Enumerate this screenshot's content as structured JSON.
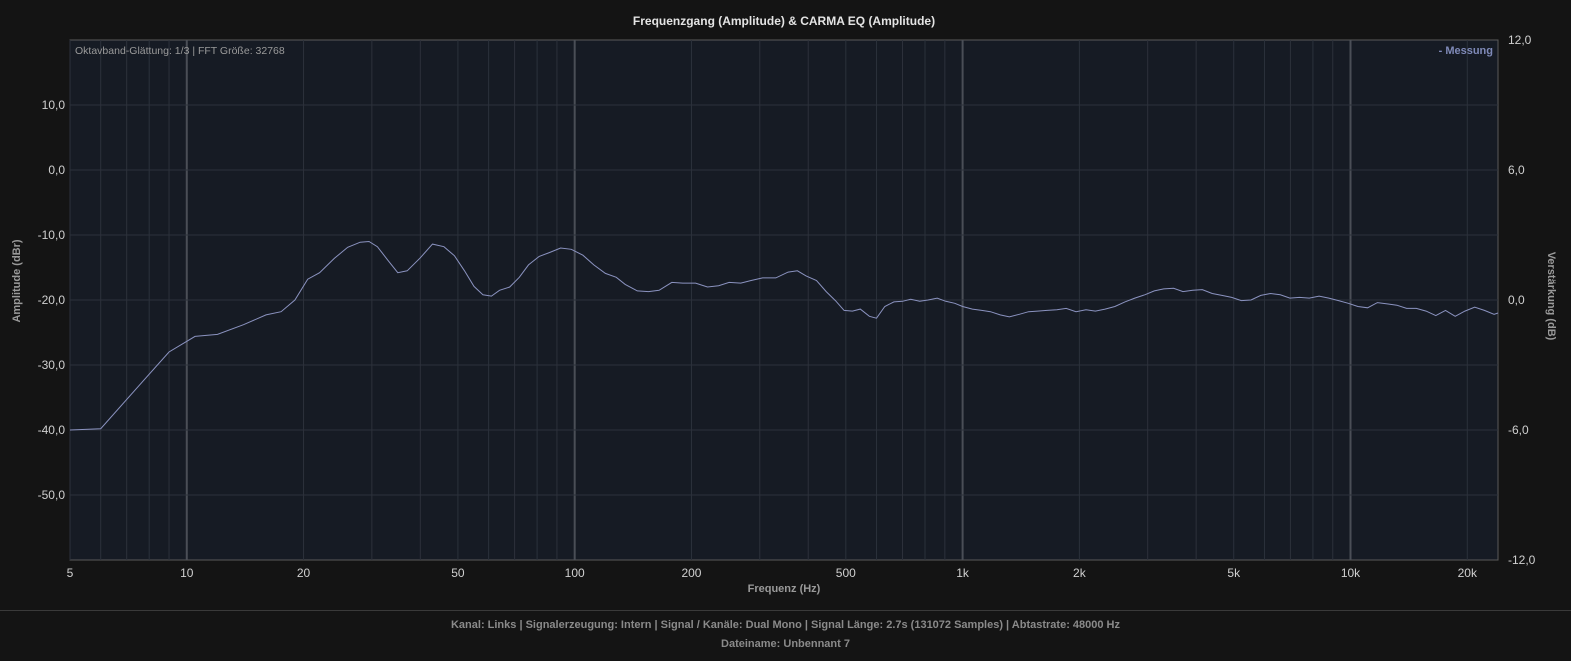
{
  "chart_data": {
    "type": "line",
    "title": "Frequenzgang (Amplitude) & CARMA EQ (Amplitude)",
    "subtitle": "Oktavband-Glättung: 1/3 | FFT Größe: 32768",
    "xlabel": "Frequenz (Hz)",
    "ylabel": "Amplitude (dBr)",
    "y2label": "Verstärkung (dB)",
    "x_scale": "log",
    "xlim": [
      5,
      24000
    ],
    "ylim": [
      -60,
      20
    ],
    "y2lim": [
      -12,
      12
    ],
    "x_ticks": [
      {
        "value": 5,
        "label": "5"
      },
      {
        "value": 10,
        "label": "10"
      },
      {
        "value": 20,
        "label": "20"
      },
      {
        "value": 50,
        "label": "50"
      },
      {
        "value": 100,
        "label": "100"
      },
      {
        "value": 200,
        "label": "200"
      },
      {
        "value": 500,
        "label": "500"
      },
      {
        "value": 1000,
        "label": "1k"
      },
      {
        "value": 2000,
        "label": "2k"
      },
      {
        "value": 5000,
        "label": "5k"
      },
      {
        "value": 10000,
        "label": "10k"
      },
      {
        "value": 20000,
        "label": "20k"
      }
    ],
    "y_ticks": [
      {
        "value": 10,
        "label": "10,0"
      },
      {
        "value": 0,
        "label": "0,0"
      },
      {
        "value": -10,
        "label": "-10,0"
      },
      {
        "value": -20,
        "label": "-20,0"
      },
      {
        "value": -30,
        "label": "-30,0"
      },
      {
        "value": -40,
        "label": "-40,0"
      },
      {
        "value": -50,
        "label": "-50,0"
      }
    ],
    "y2_ticks": [
      {
        "value": 12,
        "label": "12,0"
      },
      {
        "value": 6,
        "label": "6,0"
      },
      {
        "value": 0,
        "label": "0,0"
      },
      {
        "value": -6,
        "label": "-6,0"
      },
      {
        "value": -12,
        "label": "-12,0"
      }
    ],
    "grid": true,
    "legend_position": "top-right",
    "series": [
      {
        "name": "Messung",
        "legend_label": "- Messung",
        "color": "#8b93c0",
        "points": [
          [
            5,
            -40.0
          ],
          [
            6,
            -39.8
          ],
          [
            7.5,
            -33.3
          ],
          [
            9,
            -28.0
          ],
          [
            10.5,
            -25.6
          ],
          [
            12,
            -25.3
          ],
          [
            14,
            -23.8
          ],
          [
            16,
            -22.3
          ],
          [
            17.5,
            -21.8
          ],
          [
            19,
            -20.0
          ],
          [
            20.5,
            -16.8
          ],
          [
            22,
            -15.8
          ],
          [
            24,
            -13.6
          ],
          [
            26,
            -11.9
          ],
          [
            28,
            -11.1
          ],
          [
            29.5,
            -11.0
          ],
          [
            31,
            -11.8
          ],
          [
            33,
            -13.9
          ],
          [
            35,
            -15.8
          ],
          [
            37,
            -15.5
          ],
          [
            40,
            -13.5
          ],
          [
            43,
            -11.4
          ],
          [
            46,
            -11.8
          ],
          [
            49,
            -13.2
          ],
          [
            52,
            -15.5
          ],
          [
            55,
            -17.9
          ],
          [
            58,
            -19.2
          ],
          [
            61,
            -19.4
          ],
          [
            64,
            -18.5
          ],
          [
            68,
            -18.0
          ],
          [
            72,
            -16.5
          ],
          [
            76,
            -14.6
          ],
          [
            81,
            -13.3
          ],
          [
            86,
            -12.7
          ],
          [
            92,
            -12.0
          ],
          [
            98,
            -12.2
          ],
          [
            105,
            -13.1
          ],
          [
            112,
            -14.6
          ],
          [
            120,
            -15.9
          ],
          [
            128,
            -16.5
          ],
          [
            135,
            -17.6
          ],
          [
            145,
            -18.6
          ],
          [
            155,
            -18.7
          ],
          [
            165,
            -18.5
          ],
          [
            178,
            -17.3
          ],
          [
            190,
            -17.4
          ],
          [
            205,
            -17.4
          ],
          [
            220,
            -18.0
          ],
          [
            235,
            -17.8
          ],
          [
            250,
            -17.3
          ],
          [
            268,
            -17.4
          ],
          [
            285,
            -17.0
          ],
          [
            305,
            -16.6
          ],
          [
            330,
            -16.6
          ],
          [
            355,
            -15.7
          ],
          [
            375,
            -15.5
          ],
          [
            395,
            -16.3
          ],
          [
            420,
            -17.0
          ],
          [
            445,
            -18.7
          ],
          [
            470,
            -20.1
          ],
          [
            495,
            -21.6
          ],
          [
            520,
            -21.7
          ],
          [
            545,
            -21.4
          ],
          [
            575,
            -22.5
          ],
          [
            600,
            -22.8
          ],
          [
            630,
            -21.0
          ],
          [
            665,
            -20.3
          ],
          [
            700,
            -20.2
          ],
          [
            735,
            -19.9
          ],
          [
            775,
            -20.2
          ],
          [
            815,
            -20.0
          ],
          [
            860,
            -19.7
          ],
          [
            905,
            -20.2
          ],
          [
            955,
            -20.5
          ],
          [
            1000,
            -21.0
          ],
          [
            1060,
            -21.4
          ],
          [
            1120,
            -21.6
          ],
          [
            1180,
            -21.8
          ],
          [
            1250,
            -22.3
          ],
          [
            1320,
            -22.6
          ],
          [
            1400,
            -22.2
          ],
          [
            1480,
            -21.8
          ],
          [
            1560,
            -21.7
          ],
          [
            1650,
            -21.6
          ],
          [
            1750,
            -21.5
          ],
          [
            1850,
            -21.3
          ],
          [
            1960,
            -21.8
          ],
          [
            2080,
            -21.5
          ],
          [
            2200,
            -21.7
          ],
          [
            2330,
            -21.4
          ],
          [
            2470,
            -21.0
          ],
          [
            2620,
            -20.3
          ],
          [
            2780,
            -19.7
          ],
          [
            2950,
            -19.2
          ],
          [
            3120,
            -18.6
          ],
          [
            3300,
            -18.3
          ],
          [
            3500,
            -18.2
          ],
          [
            3700,
            -18.7
          ],
          [
            3920,
            -18.5
          ],
          [
            4150,
            -18.4
          ],
          [
            4400,
            -19.0
          ],
          [
            4660,
            -19.3
          ],
          [
            4940,
            -19.6
          ],
          [
            5230,
            -20.1
          ],
          [
            5540,
            -20.0
          ],
          [
            5870,
            -19.3
          ],
          [
            6220,
            -19.0
          ],
          [
            6590,
            -19.2
          ],
          [
            6980,
            -19.7
          ],
          [
            7390,
            -19.6
          ],
          [
            7830,
            -19.7
          ],
          [
            8300,
            -19.4
          ],
          [
            8790,
            -19.7
          ],
          [
            9310,
            -20.1
          ],
          [
            9870,
            -20.5
          ],
          [
            10450,
            -21.0
          ],
          [
            11070,
            -21.2
          ],
          [
            11730,
            -20.4
          ],
          [
            12430,
            -20.6
          ],
          [
            13170,
            -20.8
          ],
          [
            13950,
            -21.3
          ],
          [
            14780,
            -21.3
          ],
          [
            15660,
            -21.7
          ],
          [
            16590,
            -22.4
          ],
          [
            17570,
            -21.6
          ],
          [
            18620,
            -22.5
          ],
          [
            19720,
            -21.7
          ],
          [
            20900,
            -21.1
          ],
          [
            22140,
            -21.6
          ],
          [
            23450,
            -22.2
          ],
          [
            24000,
            -22.0
          ]
        ]
      }
    ]
  },
  "footer": {
    "info": "Kanal: Links  |  Signalerzeugung: Intern  |  Signal / Kanäle: Dual Mono  |  Signal Länge: 2.7s (131072 Samples)  |  Abtastrate: 48000 Hz",
    "filename": "Dateiname: Unbennant 7"
  }
}
